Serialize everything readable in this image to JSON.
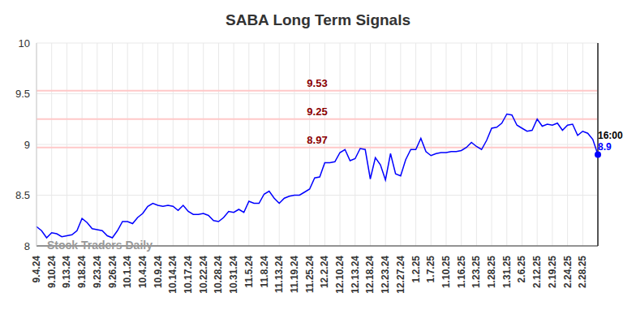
{
  "chart_data": {
    "type": "line",
    "title": "SABA Long Term Signals",
    "watermark": "Stock Traders Daily",
    "color": "#0000ff",
    "grid": true,
    "categories": [
      "9.4.24",
      null,
      null,
      "9.10.24",
      null,
      null,
      "9.13.24",
      null,
      null,
      "9.18.24",
      null,
      null,
      "9.23.24",
      null,
      null,
      "9.26.24",
      null,
      null,
      "10.1.24",
      null,
      null,
      "10.4.24",
      null,
      null,
      "10.9.24",
      null,
      null,
      "10.14.24",
      null,
      null,
      "10.17.24",
      null,
      null,
      "10.22.24",
      null,
      null,
      "10.28.24",
      null,
      null,
      "10.31.24",
      null,
      null,
      "11.5.24",
      null,
      null,
      "11.8.24",
      null,
      null,
      "11.13.24",
      null,
      null,
      "11.19.24",
      null,
      null,
      "11.25.24",
      null,
      null,
      "12.2.24",
      null,
      null,
      "12.10.24",
      null,
      null,
      "12.13.24",
      null,
      null,
      "12.18.24",
      null,
      null,
      "12.23.24",
      null,
      null,
      "12.27.24",
      null,
      null,
      "1.2.25",
      null,
      null,
      "1.7.25",
      null,
      null,
      "1.10.25",
      null,
      null,
      "1.16.25",
      null,
      null,
      "1.23.25",
      null,
      null,
      "1.28.25",
      null,
      null,
      "1.31.25",
      null,
      null,
      "2.6.25",
      null,
      null,
      "2.12.25",
      null,
      null,
      "2.19.25",
      null,
      null,
      "2.24.25",
      null,
      null,
      "2.28.25",
      null,
      null,
      null
    ],
    "values": [
      8.19,
      8.15,
      8.08,
      8.13,
      8.12,
      8.09,
      8.1,
      8.11,
      8.15,
      8.27,
      8.23,
      8.17,
      8.16,
      8.15,
      8.1,
      8.08,
      8.15,
      8.24,
      8.24,
      8.22,
      8.28,
      8.32,
      8.39,
      8.42,
      8.4,
      8.39,
      8.4,
      8.39,
      8.35,
      8.4,
      8.34,
      8.31,
      8.31,
      8.32,
      8.3,
      8.25,
      8.24,
      8.28,
      8.34,
      8.33,
      8.36,
      8.33,
      8.44,
      8.42,
      8.42,
      8.51,
      8.54,
      8.47,
      8.42,
      8.47,
      8.49,
      8.5,
      8.5,
      8.53,
      8.56,
      8.67,
      8.68,
      8.82,
      8.82,
      8.83,
      8.92,
      8.95,
      8.84,
      8.86,
      8.96,
      8.95,
      8.66,
      8.87,
      8.8,
      8.65,
      8.91,
      8.71,
      8.69,
      8.85,
      8.95,
      8.95,
      9.06,
      8.93,
      8.89,
      8.91,
      8.92,
      8.92,
      8.93,
      8.93,
      8.94,
      8.97,
      9.02,
      8.98,
      8.95,
      9.04,
      9.16,
      9.17,
      9.21,
      9.3,
      9.29,
      9.19,
      9.16,
      9.13,
      9.14,
      9.25,
      9.18,
      9.2,
      9.19,
      9.21,
      9.14,
      9.19,
      9.2,
      9.09,
      9.13,
      9.11,
      9.05,
      8.9
    ],
    "ylim": [
      8,
      10
    ],
    "yticks": [
      8,
      8.5,
      9,
      9.5,
      10
    ],
    "reference_lines": [
      {
        "value": 9.53,
        "label": "9.53"
      },
      {
        "value": 9.25,
        "label": "9.25"
      },
      {
        "value": 8.97,
        "label": "8.97"
      }
    ],
    "reference_color": "#ffc8c8",
    "last_point": {
      "time": "16:00",
      "label": "8.9"
    }
  }
}
